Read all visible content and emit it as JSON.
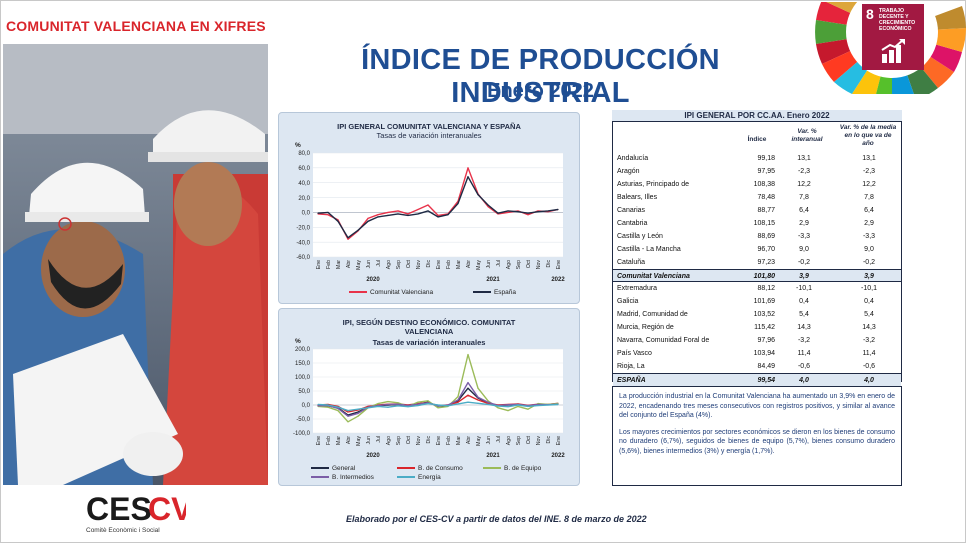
{
  "header": {
    "title": "COMUNITAT VALENCIANA EN XIFRES"
  },
  "main": {
    "title": "ÍNDICE DE PRODUCCIÓN INDUSTRIAL",
    "subtitle": "Enero 2022"
  },
  "sdg": {
    "number": "8",
    "text": "TRABAJO DECENTE Y CRECIMIENTO ECONÓMICO",
    "color": "#a21942"
  },
  "colors": {
    "accent_red": "#d9252b",
    "title_blue": "#1f4e93",
    "panel_bg": "#dde7f2",
    "cv_line": "#e8334a",
    "es_line": "#1f2a44"
  },
  "chart_data": [
    {
      "type": "line",
      "title": "IPI GENERAL COMUNITAT VALENCIANA Y ESPAÑA",
      "subtitle": "Tasas de variación interanuales",
      "ylabel": "%",
      "ylim": [
        -60,
        80
      ],
      "yticks": [
        "80,0",
        "60,0",
        "40,0",
        "20,0",
        "0,0",
        "-20,0",
        "-40,0",
        "-60,0"
      ],
      "categories": [
        "Ene",
        "Feb",
        "Mar",
        "Abr",
        "May",
        "Jun",
        "Jul",
        "Ago",
        "Sep",
        "Oct",
        "Nov",
        "Dic",
        "Ene",
        "Feb",
        "Mar",
        "Abr",
        "May",
        "Jun",
        "Jul",
        "Ago",
        "Sep",
        "Oct",
        "Nov",
        "Dic",
        "Ene"
      ],
      "years": [
        "2020",
        "2021",
        "2022"
      ],
      "series": [
        {
          "name": "Comunitat Valenciana",
          "color": "#e8334a",
          "values": [
            -2,
            -3,
            -10,
            -36,
            -25,
            -8,
            -3,
            0,
            2,
            -2,
            4,
            10,
            -4,
            -2,
            15,
            60,
            25,
            8,
            -2,
            0,
            2,
            -3,
            2,
            1,
            3.9
          ]
        },
        {
          "name": "España",
          "color": "#1f2a44",
          "values": [
            -1,
            0,
            -12,
            -34,
            -24,
            -12,
            -6,
            -4,
            -2,
            -4,
            -2,
            2,
            -6,
            -3,
            12,
            48,
            24,
            10,
            -1,
            2,
            1,
            -1,
            1,
            2,
            4.0
          ]
        }
      ]
    },
    {
      "type": "line",
      "title": "IPI, SEGÚN DESTINO ECONÓMICO. COMUNITAT VALENCIANA",
      "subtitle": "Tasas de variación interanuales",
      "ylabel": "%",
      "ylim": [
        -100,
        200
      ],
      "yticks": [
        "200,0",
        "150,0",
        "100,0",
        "50,0",
        "0,0",
        "-50,0",
        "-100,0"
      ],
      "categories": [
        "Ene",
        "Feb",
        "Mar",
        "Abr",
        "May",
        "Jun",
        "Jul",
        "Ago",
        "Sep",
        "Oct",
        "Nov",
        "Dic",
        "Ene",
        "Feb",
        "Mar",
        "Abr",
        "May",
        "Jun",
        "Jul",
        "Ago",
        "Sep",
        "Oct",
        "Nov",
        "Dic",
        "Ene"
      ],
      "years": [
        "2020",
        "2021",
        "2022"
      ],
      "series": [
        {
          "name": "General",
          "color": "#1f2a44",
          "values": [
            -2,
            -3,
            -10,
            -36,
            -25,
            -8,
            -3,
            0,
            2,
            -2,
            4,
            10,
            -4,
            -2,
            15,
            60,
            25,
            8,
            -2,
            0,
            2,
            -3,
            2,
            1,
            3.9
          ]
        },
        {
          "name": "B. de Consumo",
          "color": "#d9252b",
          "values": [
            0,
            2,
            -5,
            -25,
            -18,
            -5,
            0,
            3,
            4,
            0,
            5,
            8,
            -2,
            0,
            10,
            35,
            18,
            6,
            0,
            2,
            4,
            -1,
            3,
            2,
            6
          ]
        },
        {
          "name": "B. de Equipo",
          "color": "#9bbb59",
          "values": [
            -5,
            -8,
            -20,
            -60,
            -40,
            -10,
            5,
            12,
            8,
            -5,
            10,
            15,
            -10,
            -5,
            30,
            180,
            60,
            15,
            -10,
            -20,
            -5,
            -15,
            5,
            2,
            5.7
          ]
        },
        {
          "name": "B. Intermedios",
          "color": "#7b5ea7",
          "values": [
            -3,
            -2,
            -12,
            -40,
            -30,
            -8,
            -2,
            2,
            3,
            -2,
            3,
            8,
            -3,
            0,
            18,
            80,
            28,
            10,
            -2,
            1,
            2,
            -2,
            2,
            1,
            3
          ]
        },
        {
          "name": "Energía",
          "color": "#4bacc6",
          "values": [
            2,
            0,
            -8,
            -20,
            -15,
            -10,
            -5,
            -8,
            -3,
            -6,
            -2,
            5,
            0,
            -3,
            4,
            10,
            6,
            2,
            -4,
            -6,
            0,
            -5,
            -2,
            0,
            1.7
          ]
        }
      ]
    }
  ],
  "table": {
    "title": "IPI GENERAL POR CC.AA. Enero 2022",
    "col_index": "Índice",
    "col_var": "Var. % interanual",
    "col_avg": "Var. % de la media en lo que va de año",
    "rows": [
      {
        "name": "Andalucía",
        "index": "99,18",
        "var": "13,1",
        "avg": "13,1"
      },
      {
        "name": "Aragón",
        "index": "97,95",
        "var": "-2,3",
        "avg": "-2,3"
      },
      {
        "name": "Asturias, Principado de",
        "index": "108,38",
        "var": "12,2",
        "avg": "12,2"
      },
      {
        "name": "Balears, Illes",
        "index": "78,48",
        "var": "7,8",
        "avg": "7,8"
      },
      {
        "name": "Canarias",
        "index": "88,77",
        "var": "6,4",
        "avg": "6,4"
      },
      {
        "name": "Cantabria",
        "index": "108,15",
        "var": "2,9",
        "avg": "2,9"
      },
      {
        "name": "Castilla y León",
        "index": "88,69",
        "var": "-3,3",
        "avg": "-3,3"
      },
      {
        "name": "Castilla - La Mancha",
        "index": "96,70",
        "var": "9,0",
        "avg": "9,0"
      },
      {
        "name": "Cataluña",
        "index": "97,23",
        "var": "-0,2",
        "avg": "-0,2"
      },
      {
        "name": "Comunitat Valenciana",
        "index": "101,80",
        "var": "3,9",
        "avg": "3,9",
        "highlight": true
      },
      {
        "name": "Extremadura",
        "index": "88,12",
        "var": "-10,1",
        "avg": "-10,1"
      },
      {
        "name": "Galicia",
        "index": "101,69",
        "var": "0,4",
        "avg": "0,4"
      },
      {
        "name": "Madrid, Comunidad de",
        "index": "103,52",
        "var": "5,4",
        "avg": "5,4"
      },
      {
        "name": "Murcia, Región de",
        "index": "115,42",
        "var": "14,3",
        "avg": "14,3"
      },
      {
        "name": "Navarra, Comunidad Foral de",
        "index": "97,96",
        "var": "-3,2",
        "avg": "-3,2"
      },
      {
        "name": "País Vasco",
        "index": "103,94",
        "var": "11,4",
        "avg": "11,4"
      },
      {
        "name": "Rioja, La",
        "index": "84,49",
        "var": "-0,6",
        "avg": "-0,6"
      }
    ],
    "total": {
      "name": "ESPAÑA",
      "index": "99,54",
      "var": "4,0",
      "avg": "4,0"
    }
  },
  "summary": {
    "p1": "La producción industrial en la Comunitat Valenciana ha aumentado un 3,9% en enero de 2022, encadenando tres meses consecutivos con registros positivos, y similar al avance del conjunto del España (4%).",
    "p2": "Los mayores crecimientos por sectores económicos se dieron en los bienes de consumo no duradero (6,7%), seguidos de bienes de equipo (5,7%), bienes consumo duradero (5,6%), bienes intermedios (3%) y energía (1,7%)."
  },
  "footer": {
    "note": "Elaborado por el CES-CV a partir de datos del INE. 8 de marzo de 2022",
    "logo": "CESCV",
    "logo_tag": "Comitè Econòmic i Social"
  }
}
